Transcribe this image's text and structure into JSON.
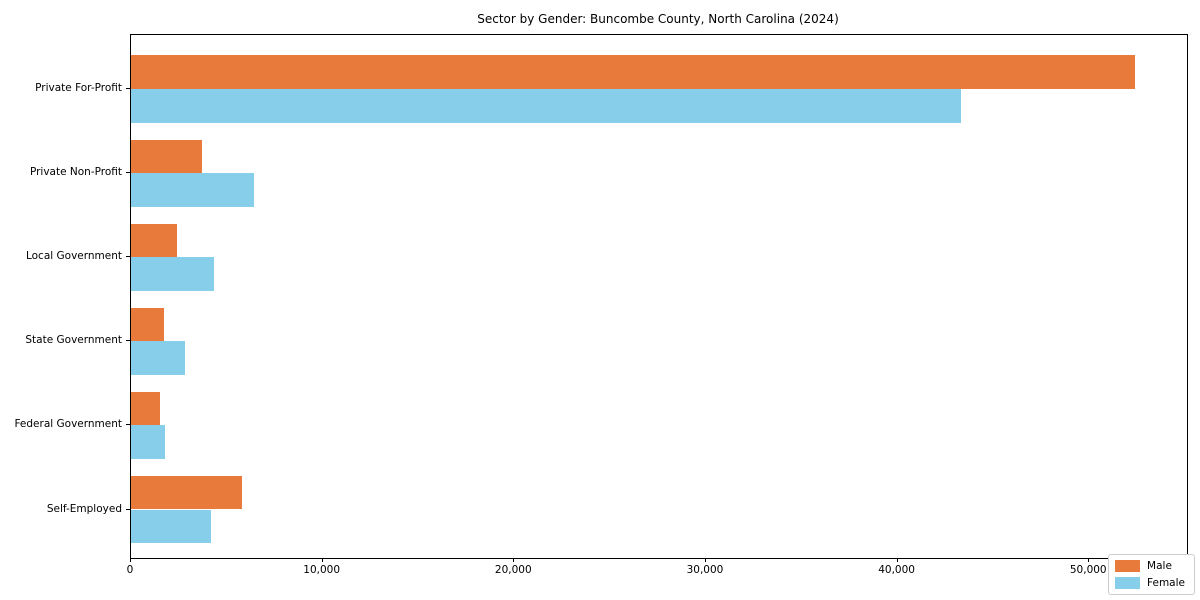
{
  "chart_data": {
    "type": "bar",
    "orientation": "horizontal",
    "title": "Sector by Gender: Buncombe County, North Carolina (2024)",
    "xlabel": "",
    "ylabel": "",
    "categories": [
      "Private For-Profit",
      "Private Non-Profit",
      "Local Government",
      "State Government",
      "Federal Government",
      "Self-Employed"
    ],
    "series": [
      {
        "name": "Male",
        "color": "#e87b3c",
        "values": [
          52400,
          3700,
          2400,
          1700,
          1500,
          5800
        ]
      },
      {
        "name": "Female",
        "color": "#87ceea",
        "values": [
          43300,
          6400,
          4350,
          2800,
          1800,
          4200
        ]
      }
    ],
    "xlim": [
      0,
      55100
    ],
    "x_ticks": [
      {
        "value": 0,
        "label": "0"
      },
      {
        "value": 10000,
        "label": "10,000"
      },
      {
        "value": 20000,
        "label": "20,000"
      },
      {
        "value": 30000,
        "label": "30,000"
      },
      {
        "value": 40000,
        "label": "40,000"
      },
      {
        "value": 50000,
        "label": "50,000"
      }
    ],
    "grid": false,
    "legend": {
      "position": "lower right"
    },
    "colors": {
      "axis": "#000000",
      "legend_border": "#cccccc",
      "background": "#ffffff"
    }
  }
}
